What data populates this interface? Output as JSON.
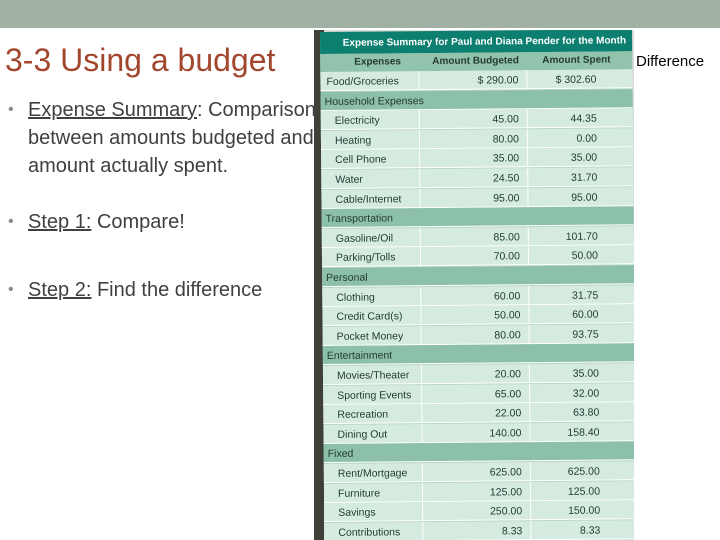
{
  "slide": {
    "title": "3-3 Using a budget",
    "side_label": "Difference",
    "bullets": [
      {
        "term": "Expense Summary",
        "rest": ": Comparison between amounts budgeted and amount actually spent."
      },
      {
        "term": "Step 1:",
        "rest": " Compare!"
      },
      {
        "term": "Step 2:",
        "rest": " Find the difference"
      }
    ]
  },
  "table": {
    "title": "Expense Summary for Paul and Diana Pender for the Month",
    "headers": [
      "Expenses",
      "Amount Budgeted",
      "Amount Spent"
    ],
    "rows": [
      {
        "kind": "top",
        "label": "Food/Groceries",
        "budgeted": "$ 290.00",
        "spent": "$ 302.60"
      },
      {
        "kind": "section",
        "label": "Household Expenses"
      },
      {
        "kind": "item",
        "label": "Electricity",
        "budgeted": "45.00",
        "spent": "44.35"
      },
      {
        "kind": "item",
        "label": "Heating",
        "budgeted": "80.00",
        "spent": "0.00"
      },
      {
        "kind": "item",
        "label": "Cell Phone",
        "budgeted": "35.00",
        "spent": "35.00"
      },
      {
        "kind": "item",
        "label": "Water",
        "budgeted": "24.50",
        "spent": "31.70"
      },
      {
        "kind": "item",
        "label": "Cable/Internet",
        "budgeted": "95.00",
        "spent": "95.00"
      },
      {
        "kind": "section",
        "label": "Transportation"
      },
      {
        "kind": "item",
        "label": "Gasoline/Oil",
        "budgeted": "85.00",
        "spent": "101.70"
      },
      {
        "kind": "item",
        "label": "Parking/Tolls",
        "budgeted": "70.00",
        "spent": "50.00"
      },
      {
        "kind": "section",
        "label": "Personal"
      },
      {
        "kind": "item",
        "label": "Clothing",
        "budgeted": "60.00",
        "spent": "31.75"
      },
      {
        "kind": "item",
        "label": "Credit Card(s)",
        "budgeted": "50.00",
        "spent": "60.00"
      },
      {
        "kind": "item",
        "label": "Pocket Money",
        "budgeted": "80.00",
        "spent": "93.75"
      },
      {
        "kind": "section",
        "label": "Entertainment"
      },
      {
        "kind": "item",
        "label": "Movies/Theater",
        "budgeted": "20.00",
        "spent": "35.00"
      },
      {
        "kind": "item",
        "label": "Sporting Events",
        "budgeted": "65.00",
        "spent": "32.00"
      },
      {
        "kind": "item",
        "label": "Recreation",
        "budgeted": "22.00",
        "spent": "63.80"
      },
      {
        "kind": "item",
        "label": "Dining Out",
        "budgeted": "140.00",
        "spent": "158.40"
      },
      {
        "kind": "section",
        "label": "Fixed"
      },
      {
        "kind": "item",
        "label": "Rent/Mortgage",
        "budgeted": "625.00",
        "spent": "625.00"
      },
      {
        "kind": "item",
        "label": "Furniture",
        "budgeted": "125.00",
        "spent": "125.00"
      },
      {
        "kind": "item",
        "label": "Savings",
        "budgeted": "250.00",
        "spent": "150.00"
      },
      {
        "kind": "item",
        "label": "Contributions",
        "budgeted": "8.33",
        "spent": "8.33"
      }
    ]
  }
}
